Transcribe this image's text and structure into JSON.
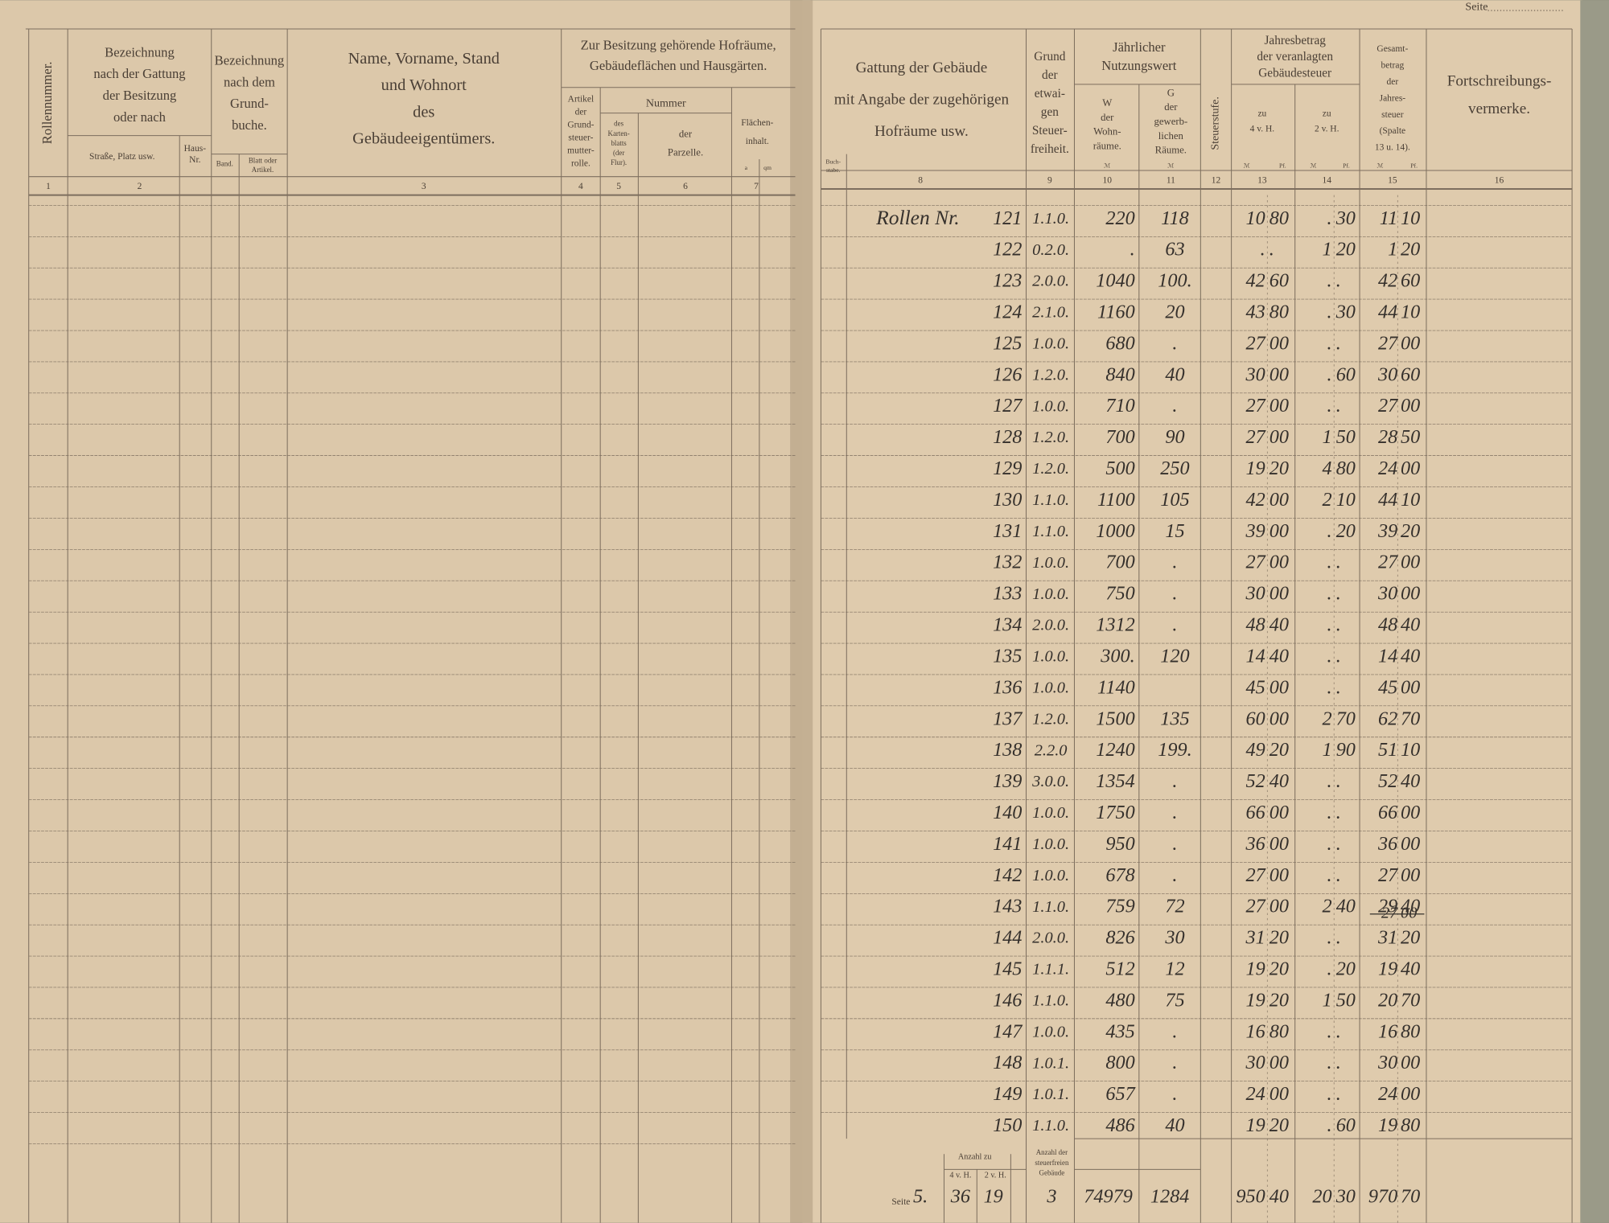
{
  "page_label": "Seite",
  "header_texts": [
    {
      "lines": [
        "Rollennummer."
      ]
    },
    {
      "lines": [
        "Bezeichnung",
        "nach der Gattung",
        "der Besitzung",
        "oder nach"
      ]
    },
    {
      "lines": [
        "Straße, Platz usw."
      ]
    },
    {
      "lines": [
        "Haus-",
        "Nr."
      ]
    },
    {
      "lines": [
        "Bezeichnung",
        "nach dem",
        "Grund-",
        "buche."
      ]
    },
    {
      "lines": [
        "Band."
      ]
    },
    {
      "lines": [
        "Blatt oder",
        "Artikel."
      ]
    },
    {
      "lines": [
        "Name, Vorname, Stand",
        "und Wohnort",
        "des",
        "Gebäudeeigentümers."
      ]
    },
    {
      "lines": [
        "Zur Besitzung gehörende Hofräume,",
        "Gebäudeflächen und Hausgärten."
      ]
    },
    {
      "lines": [
        "Artikel",
        "der",
        "Grund-",
        "steuer-",
        "mutter-",
        "rolle."
      ]
    },
    {
      "lines": [
        "Nummer"
      ]
    },
    {
      "lines": [
        "des",
        "Karten-",
        "blatts",
        "(der",
        "Flur)."
      ]
    },
    {
      "lines": [
        "der",
        "Parzelle."
      ]
    },
    {
      "lines": [
        "Flächen-",
        "inhalt."
      ]
    },
    {
      "lines": [
        "a"
      ]
    },
    {
      "lines": [
        "qm"
      ]
    },
    {
      "lines": [
        "Gattung der Gebäude",
        "mit Angabe der zugehörigen",
        "Hofräume usw."
      ]
    },
    {
      "lines": [
        "Buch-",
        "stabe."
      ]
    },
    {
      "lines": [
        "Grund",
        "der",
        "etwai-",
        "gen",
        "Steuer-",
        "freiheit."
      ]
    },
    {
      "lines": [
        "Jährlicher",
        "Nutzungswert"
      ]
    },
    {
      "lines": [
        "W",
        "der",
        "Wohn-",
        "räume."
      ]
    },
    {
      "lines": [
        "G",
        "der",
        "gewerb-",
        "lichen",
        "Räume."
      ]
    },
    {
      "lines": [
        "Steuerstufe."
      ]
    },
    {
      "lines": [
        "Jahresbetrag",
        "der veranlagten",
        "Gebäudesteuer"
      ]
    },
    {
      "lines": [
        "zu",
        "4 v. H."
      ]
    },
    {
      "lines": [
        "zu",
        "2 v. H."
      ]
    },
    {
      "lines": [
        "Gesamt-",
        "betrag",
        "der",
        "Jahres-",
        "steuer",
        "(Spalte",
        "13 u. 14)."
      ]
    },
    {
      "lines": [
        "Fortschreibungs-",
        "vermerke."
      ]
    },
    {
      "lines": [
        "ℳ"
      ]
    },
    {
      "lines": [
        "ℳ"
      ]
    },
    {
      "lines": [
        "ℳ"
      ]
    },
    {
      "lines": [
        "Pf."
      ]
    },
    {
      "lines": [
        "ℳ"
      ]
    },
    {
      "lines": [
        "Pf."
      ]
    },
    {
      "lines": [
        "ℳ"
      ]
    },
    {
      "lines": [
        "Pf."
      ]
    }
  ],
  "column_numbers": [
    1,
    2,
    3,
    4,
    5,
    6,
    7,
    8,
    9,
    10,
    11,
    12,
    13,
    14,
    15,
    16
  ],
  "rows": [
    {
      "prefix": "Rollen Nr.",
      "cells": [
        "121",
        "1.1.0.",
        "220",
        "118",
        "10",
        "80",
        ".",
        "30",
        "11",
        "10"
      ]
    },
    {
      "cells": [
        "122",
        "0.2.0.",
        ".",
        "63",
        ".",
        ".",
        "1",
        "20",
        "1",
        "20"
      ]
    },
    {
      "cells": [
        "123",
        "2.0.0.",
        "1040",
        "100.",
        "42",
        "60",
        ".",
        ".",
        "42",
        "60"
      ]
    },
    {
      "cells": [
        "124",
        "2.1.0.",
        "1160",
        "20",
        "43",
        "80",
        ".",
        "30",
        "44",
        "10"
      ]
    },
    {
      "cells": [
        "125",
        "1.0.0.",
        "680",
        ".",
        "27",
        "00",
        ".",
        ".",
        "27",
        "00"
      ]
    },
    {
      "cells": [
        "126",
        "1.2.0.",
        "840",
        "40",
        "30",
        "00",
        ".",
        "60",
        "30",
        "60"
      ]
    },
    {
      "cells": [
        "127",
        "1.0.0.",
        "710",
        ".",
        "27",
        "00",
        ".",
        ".",
        "27",
        "00"
      ]
    },
    {
      "cells": [
        "128",
        "1.2.0.",
        "700",
        "90",
        "27",
        "00",
        "1",
        "50",
        "28",
        "50"
      ]
    },
    {
      "cells": [
        "129",
        "1.2.0.",
        "500",
        "250",
        "19",
        "20",
        "4",
        "80",
        "24",
        "00"
      ]
    },
    {
      "cells": [
        "130",
        "1.1.0.",
        "1100",
        "105",
        "42",
        "00",
        "2",
        "10",
        "44",
        "10"
      ]
    },
    {
      "cells": [
        "131",
        "1.1.0.",
        "1000",
        "15",
        "39",
        "00",
        ".",
        "20",
        "39",
        "20"
      ]
    },
    {
      "cells": [
        "132",
        "1.0.0.",
        "700",
        ".",
        "27",
        "00",
        ".",
        ".",
        "27",
        "00"
      ]
    },
    {
      "cells": [
        "133",
        "1.0.0.",
        "750",
        ".",
        "30",
        "00",
        ".",
        ".",
        "30",
        "00"
      ]
    },
    {
      "cells": [
        "134",
        "2.0.0.",
        "1312",
        ".",
        "48",
        "40",
        ".",
        ".",
        "48",
        "40"
      ]
    },
    {
      "cells": [
        "135",
        "1.0.0.",
        "300.",
        "120",
        "14",
        "40",
        ".",
        ".",
        "14",
        "40"
      ]
    },
    {
      "cells": [
        "136",
        "1.0.0.",
        "1140",
        null,
        "45",
        "00",
        ".",
        ".",
        "45",
        "00"
      ]
    },
    {
      "cells": [
        "137",
        "1.2.0.",
        "1500",
        "135",
        "60",
        "00",
        "2",
        "70",
        "62",
        "70"
      ]
    },
    {
      "cells": [
        "138",
        "2.2.0",
        "1240",
        "199.",
        "49",
        "20",
        "1",
        "90",
        "51",
        "10"
      ]
    },
    {
      "cells": [
        "139",
        "3.0.0.",
        "1354",
        ".",
        "52",
        "40",
        ".",
        ".",
        "52",
        "40"
      ]
    },
    {
      "cells": [
        "140",
        "1.0.0.",
        "1750",
        ".",
        "66",
        "00",
        ".",
        ".",
        "66",
        "00"
      ]
    },
    {
      "cells": [
        "141",
        "1.0.0.",
        "950",
        ".",
        "36",
        "00",
        ".",
        ".",
        "36",
        "00"
      ]
    },
    {
      "cells": [
        "142",
        "1.0.0.",
        "678",
        ".",
        "27",
        "00",
        ".",
        ".",
        "27",
        "00"
      ]
    },
    {
      "cells": [
        "143",
        "1.1.0.",
        "759",
        "72",
        "27",
        "00",
        "2",
        "40",
        "29",
        "40"
      ],
      "struck": [
        "27",
        "00"
      ]
    },
    {
      "cells": [
        "144",
        "2.0.0.",
        "826",
        "30",
        "31",
        "20",
        ".",
        ".",
        "31",
        "20"
      ]
    },
    {
      "cells": [
        "145",
        "1.1.1.",
        "512",
        "12",
        "19",
        "20",
        ".",
        "20",
        "19",
        "40"
      ]
    },
    {
      "cells": [
        "146",
        "1.1.0.",
        "480",
        "75",
        "19",
        "20",
        "1",
        "50",
        "20",
        "70"
      ]
    },
    {
      "cells": [
        "147",
        "1.0.0.",
        "435",
        ".",
        "16",
        "80",
        ".",
        ".",
        "16",
        "80"
      ]
    },
    {
      "cells": [
        "148",
        "1.0.1.",
        "800",
        ".",
        "30",
        "00",
        ".",
        ".",
        "30",
        "00"
      ]
    },
    {
      "cells": [
        "149",
        "1.0.1.",
        "657",
        ".",
        "24",
        "00",
        ".",
        ".",
        "24",
        "00"
      ]
    },
    {
      "cells": [
        "150",
        "1.1.0.",
        "486",
        "40",
        "19",
        "20",
        ".",
        "60",
        "19",
        "80"
      ]
    }
  ],
  "footer": {
    "labels": [
      {
        "lines": [
          "Anzahl zu"
        ]
      },
      {
        "lines": [
          "4 v. H."
        ]
      },
      {
        "lines": [
          "2 v. H."
        ]
      },
      {
        "lines": [
          "Anzahl der",
          "steuerfreien",
          "Gebäude"
        ]
      }
    ],
    "seite": "Seite",
    "values": [
      "5.",
      "36",
      "19",
      "3",
      "74979",
      "1284",
      "950",
      "40",
      "20",
      "30",
      "970",
      "70"
    ]
  }
}
